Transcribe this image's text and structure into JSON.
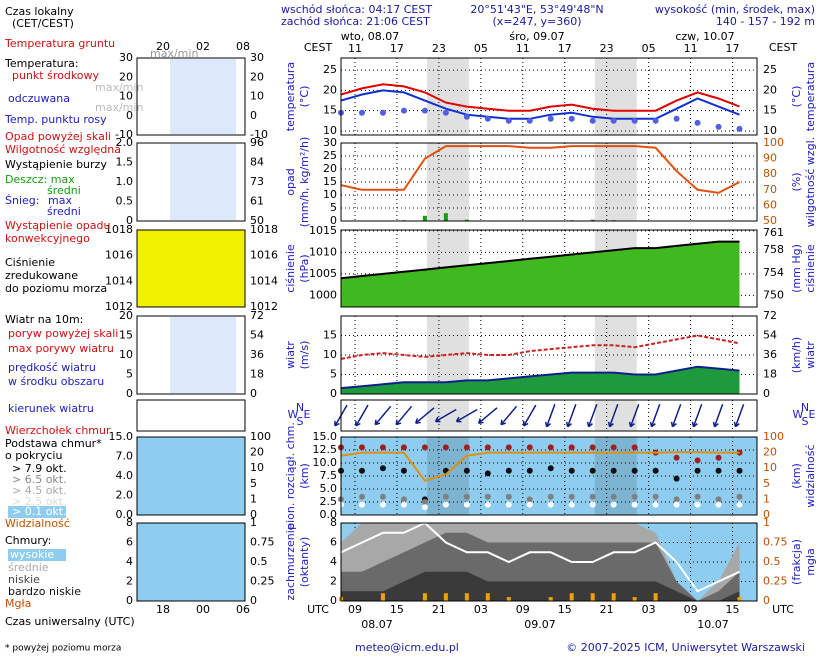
{
  "header": {
    "sunrise": "wschód słońca: 04:17 CEST",
    "sunset": "zachód słońca: 21:06 CEST",
    "coords": "20°51'43\"E, 53°49'48\"N",
    "grid": "(x=247, y=360)",
    "height_title": "wysokość (min, środek, max)",
    "height_values": "140 - 157 - 192 m"
  },
  "time_axis": {
    "xlim": [
      7,
      66.5
    ],
    "cest_label": "CEST",
    "utc_label": "UTC",
    "cest_ticks": [
      {
        "value": 9,
        "label": "11"
      },
      {
        "value": 15,
        "label": "17"
      },
      {
        "value": 21,
        "label": "23"
      },
      {
        "value": 27,
        "label": "05"
      },
      {
        "value": 33,
        "label": "11"
      },
      {
        "value": 39,
        "label": "17"
      },
      {
        "value": 45,
        "label": "23"
      },
      {
        "value": 51,
        "label": "05"
      },
      {
        "value": 57,
        "label": "11"
      },
      {
        "value": 63,
        "label": "17"
      }
    ],
    "utc_ticks": [
      {
        "value": 9,
        "label": "09"
      },
      {
        "value": 15,
        "label": "15"
      },
      {
        "value": 21,
        "label": "21"
      },
      {
        "value": 27,
        "label": "03"
      },
      {
        "value": 33,
        "label": "09"
      },
      {
        "value": 39,
        "label": "15"
      },
      {
        "value": 45,
        "label": "21"
      },
      {
        "value": 51,
        "label": "03"
      },
      {
        "value": 57,
        "label": "09"
      },
      {
        "value": 63,
        "label": "15"
      }
    ],
    "top_dates": [
      "wto, 08.07",
      "śro, 09.07",
      "czw, 10.07"
    ],
    "bottom_dates": [
      "08.07",
      "09.07",
      "10.07"
    ]
  },
  "chart_data": [
    {
      "type": "line",
      "ylabel": [
        "temperatura",
        "(°C)"
      ],
      "y2label": [
        "(°C)",
        "temperatura"
      ],
      "ylim": [
        9,
        28
      ],
      "yticks": [
        10,
        15,
        20,
        25
      ],
      "grid": true,
      "x": [
        7,
        10,
        13,
        16,
        19,
        22,
        25,
        28,
        31,
        34,
        37,
        40,
        43,
        46,
        49,
        52,
        55,
        58,
        61,
        64
      ],
      "series": [
        {
          "name": "punkt środkowy",
          "style": "line",
          "color": "#e00000",
          "values": [
            19,
            20.5,
            21.5,
            21,
            19.5,
            17,
            16,
            15.5,
            15,
            15,
            16,
            16.5,
            15.5,
            15,
            15,
            15,
            17.5,
            19.5,
            18,
            16
          ]
        },
        {
          "name": "odczuwana",
          "style": "line",
          "color": "#1030d0",
          "values": [
            17.5,
            19,
            20,
            19.5,
            17.5,
            15.5,
            14,
            13.5,
            13,
            13,
            14,
            14.5,
            13.5,
            13,
            13,
            13,
            15.5,
            18,
            16,
            14
          ]
        },
        {
          "name": "Temp. punktu rosy",
          "style": "dots",
          "color": "#5060e0",
          "values": [
            14.5,
            14.5,
            14.5,
            15,
            15,
            14.5,
            13.5,
            13,
            12.5,
            12.5,
            13,
            13,
            12.5,
            12.5,
            12.5,
            12.5,
            13,
            12,
            11,
            10.5
          ]
        }
      ]
    },
    {
      "type": "line",
      "ylabel": [
        "opad",
        "(mm/h, kg/m²/h)"
      ],
      "y2label": [
        "(%)",
        "wilgotność wzgl."
      ],
      "ylim": [
        0,
        30
      ],
      "yticks": [
        0,
        5,
        10,
        15,
        20,
        25,
        30
      ],
      "y2lim": [
        50,
        100
      ],
      "y2ticks": [
        50,
        60,
        70,
        80,
        90,
        100
      ],
      "grid": true,
      "x": [
        7,
        10,
        13,
        16,
        19,
        22,
        25,
        28,
        31,
        34,
        37,
        40,
        43,
        46,
        49,
        52,
        55,
        58,
        61,
        64
      ],
      "series": [
        {
          "name": "Wilgotność względna",
          "style": "line",
          "axis": "y2",
          "color": "#e05010",
          "values": [
            73,
            70,
            70,
            70,
            90,
            98,
            98,
            98,
            98,
            97,
            97,
            98,
            98,
            98,
            98,
            97,
            82,
            70,
            68,
            75
          ]
        },
        {
          "name": "Deszcz: max",
          "style": "bars",
          "color": "#10a010",
          "values": [
            0,
            0,
            0,
            0.3,
            2,
            3,
            0.5,
            0.2,
            0,
            0,
            0,
            0.3,
            0.5,
            0.3,
            0,
            0,
            0,
            0,
            0,
            0.2
          ]
        }
      ]
    },
    {
      "type": "line",
      "ylabel": [
        "ciśnienie",
        "(hPa)"
      ],
      "y2label": [
        "(mm Hg)",
        "ciśnienie"
      ],
      "ylim": [
        997.3,
        1015.2
      ],
      "yticks": [
        1000,
        1005,
        1010,
        1015
      ],
      "y2lim": [
        748,
        761.5
      ],
      "y2ticks": [
        750,
        754,
        758,
        761
      ],
      "grid": true,
      "x": [
        7,
        10,
        13,
        16,
        19,
        22,
        25,
        28,
        31,
        34,
        37,
        40,
        43,
        46,
        49,
        52,
        55,
        58,
        61,
        64
      ],
      "series": [
        {
          "name": "Ciśnienie",
          "style": "area",
          "color": "#40b820",
          "stroke": "#000000",
          "values": [
            1004,
            1004.5,
            1005,
            1005.5,
            1006,
            1006.5,
            1007,
            1007.5,
            1008,
            1008.5,
            1009,
            1009.5,
            1010,
            1010.5,
            1011,
            1011,
            1011.5,
            1012,
            1012.5,
            1012.5
          ]
        }
      ]
    },
    {
      "type": "line",
      "ylabel": [
        "wiatr",
        "(m/s)"
      ],
      "y2label": [
        "(km/h)",
        "wiatr"
      ],
      "ylim": [
        0,
        20
      ],
      "yticks": [
        0,
        5,
        10,
        15
      ],
      "y2lim": [
        0,
        72
      ],
      "y2ticks": [
        0,
        18,
        36,
        54,
        72
      ],
      "grid": true,
      "x": [
        7,
        10,
        13,
        16,
        19,
        22,
        25,
        28,
        31,
        34,
        37,
        40,
        43,
        46,
        49,
        52,
        55,
        58,
        61,
        64
      ],
      "series": [
        {
          "name": "max porywy wiatru",
          "style": "dashed",
          "color": "#d02020",
          "values": [
            9,
            10,
            10.5,
            10,
            9.5,
            10,
            10.5,
            10,
            10,
            11,
            11.5,
            12,
            12.5,
            12.5,
            12,
            13,
            14,
            15,
            14,
            13
          ]
        },
        {
          "name": "prędkość wiatru",
          "style": "area",
          "color": "#1e9a3c",
          "stroke": "#10208a",
          "values": [
            1.5,
            2,
            2.5,
            3,
            3,
            3,
            3.5,
            3.5,
            4,
            4.5,
            5,
            5.5,
            5.5,
            5.5,
            5,
            5,
            6,
            7,
            6.5,
            6
          ]
        }
      ]
    },
    {
      "type": "quiver",
      "compass": [
        "N",
        "W",
        "E",
        "S"
      ],
      "grid": true,
      "x": [
        7,
        10,
        13,
        16,
        19,
        22,
        25,
        28,
        31,
        34,
        37,
        40,
        43,
        46,
        49,
        52,
        55,
        58,
        61,
        64
      ],
      "series": [
        {
          "name": "kierunek wiatru",
          "style": "arrows",
          "color": "#10208a",
          "values": [
            30,
            30,
            40,
            40,
            50,
            60,
            60,
            50,
            40,
            30,
            20,
            20,
            20,
            20,
            20,
            20,
            20,
            20,
            20,
            20
          ]
        }
      ]
    },
    {
      "type": "line",
      "ylabel": [
        "pion. rozciągł. chm.",
        "(km)"
      ],
      "y2label": [
        "(km)",
        "widzialność"
      ],
      "ylim": [
        0,
        15
      ],
      "yticks": [
        {
          "value": 0,
          "label": "0.0"
        },
        {
          "value": 2.5,
          "label": "2.5"
        },
        {
          "value": 5,
          "label": "5.0"
        },
        {
          "value": 7.5,
          "label": "7.5"
        },
        {
          "value": 10,
          "label": "10.0"
        },
        {
          "value": 12.5,
          "label": "12.5"
        },
        {
          "value": 15,
          "label": "15.0"
        }
      ],
      "y2lim": [
        0,
        100
      ],
      "y2ticks": [
        0,
        1,
        5,
        10,
        20,
        100
      ],
      "y2scale": "ticks",
      "background": "#8ecdf0",
      "grid": true,
      "x": [
        7,
        10,
        13,
        16,
        19,
        22,
        25,
        28,
        31,
        34,
        37,
        40,
        43,
        46,
        49,
        52,
        55,
        58,
        61,
        64
      ],
      "series": [
        {
          "name": "Wierzchołek chmur",
          "style": "dots",
          "color": "#a02020",
          "values": [
            13,
            13,
            13,
            13,
            13,
            13,
            13,
            13,
            13,
            13,
            13,
            13,
            13,
            13,
            13,
            12,
            11,
            10.5,
            11,
            12
          ]
        },
        {
          "name": "> 7.9 okt.",
          "style": "dots",
          "color": "#101010",
          "values": [
            8.5,
            8.5,
            9,
            8.5,
            3,
            8.5,
            8.5,
            8,
            8.5,
            8.5,
            9,
            8.5,
            8.5,
            8.5,
            8.5,
            8.5,
            7,
            8.5,
            8.5,
            8.5
          ]
        },
        {
          "name": "> 4.5 okt.",
          "style": "dots",
          "color": "#808080",
          "values": [
            3,
            3.5,
            3.5,
            3,
            2.5,
            3.5,
            3.5,
            3.5,
            3.5,
            3,
            3.5,
            3.5,
            3.5,
            3.5,
            3.5,
            3.5,
            3,
            3.5,
            3,
            3.5
          ]
        },
        {
          "name": "> 0.1 okt.",
          "style": "dots",
          "color": "#ffffff",
          "values": [
            2,
            2,
            2,
            2,
            1.5,
            2,
            2,
            2,
            2,
            2,
            2,
            2,
            2,
            2,
            2,
            2,
            2,
            2,
            2,
            2
          ]
        },
        {
          "name": "Widzialność",
          "style": "line",
          "axis": "y2",
          "color": "#e09010",
          "values": [
            18,
            20,
            20,
            20,
            6,
            8,
            18,
            20,
            20,
            20,
            20,
            20,
            20,
            20,
            20,
            20,
            22,
            22,
            20,
            20
          ]
        }
      ]
    },
    {
      "type": "line",
      "ylabel": [
        "zachmurzenie",
        "(oktanty)"
      ],
      "y2label": [
        "(frakcja)",
        "mgła"
      ],
      "ylim": [
        0,
        8
      ],
      "yticks": [
        0,
        2,
        4,
        6,
        8
      ],
      "y2lim": [
        0,
        1
      ],
      "y2ticks": [
        0,
        0.25,
        0.5,
        0.75,
        1
      ],
      "background": "#8ecdf0",
      "grid": true,
      "x": [
        7,
        10,
        13,
        16,
        19,
        22,
        25,
        28,
        31,
        34,
        37,
        40,
        43,
        46,
        49,
        52,
        55,
        58,
        61,
        64
      ],
      "series": [
        {
          "name": "średnie",
          "style": "area",
          "color": "#a8a8a8",
          "values": [
            6,
            8,
            8,
            8,
            8,
            8,
            8,
            8,
            8,
            8,
            8,
            8,
            8,
            8,
            8,
            7,
            2,
            0,
            2,
            6
          ]
        },
        {
          "name": "niskie",
          "style": "area",
          "color": "#6a6a6a",
          "values": [
            3,
            3,
            4,
            5,
            6,
            7,
            7,
            6,
            6,
            6,
            6,
            6,
            6,
            6,
            6,
            6,
            2,
            0,
            1,
            3
          ]
        },
        {
          "name": "bardzo niskie",
          "style": "area",
          "color": "#3a3a3a",
          "values": [
            1,
            1,
            1,
            2,
            3,
            3,
            3,
            2,
            2,
            2,
            2,
            2,
            2,
            2,
            2,
            2,
            1,
            0,
            0,
            1
          ]
        },
        {
          "name": "wysokie",
          "style": "line",
          "color": "#ffffff",
          "values": [
            5,
            6,
            7,
            7,
            8,
            6,
            5,
            5,
            4,
            5,
            5,
            4,
            4,
            5,
            5,
            6,
            4,
            1,
            2,
            3
          ]
        },
        {
          "name": "Mgła",
          "style": "bars",
          "axis": "y2",
          "color": "#f0a000",
          "values": [
            0.05,
            0,
            0.1,
            0,
            0.1,
            0.1,
            0.1,
            0.1,
            0.05,
            0,
            0.05,
            0.1,
            0.1,
            0.1,
            0.05,
            0.1,
            0,
            0,
            0,
            0.05
          ]
        }
      ]
    }
  ],
  "legend": {
    "local_time": "Czas lokalny",
    "local_time_zone": "(CET/CEST)",
    "ground_temp": "Temperatura gruntu",
    "ground_minmax": "max/min",
    "temperature": "Temperatura:",
    "mid_minmax": "max/min",
    "feel_minmax": "max/min",
    "precip_over": "Opad powyżej skali",
    "storm": "Wystąpienie burzy",
    "rain_mean": "średni",
    "snow": "Śnieg:",
    "snow_max": "max",
    "snow_mean": "średni",
    "convective1": "Wystąpienie opadu",
    "convective2": "konwekcyjnego",
    "pressure2": "zredukowane",
    "pressure3": "do poziomu morza",
    "wind_title": "Wiatr na 10m:",
    "gust_over": "poryw powyżej skali",
    "wind_mid": "w środku obszaru",
    "cloud_base": "Podstawa chmur*",
    "cloud_cover": "o pokryciu",
    "okt65": "> 6.5 okt.",
    "okt25": "> 2.5 okt.",
    "clouds": "Chmury:",
    "utc_time": "Czas uniwersalny (UTC)",
    "mini_top_ticks": [
      "20",
      "02",
      "08"
    ],
    "mini_bottom_ticks": [
      "18",
      "00",
      "06"
    ],
    "mini_panels": [
      {
        "left": [
          "30",
          "20",
          "10",
          "0",
          "-10"
        ],
        "right": [
          "30",
          "20",
          "10",
          "0",
          "-10"
        ]
      },
      {
        "left": [
          "2.0",
          "1.5",
          "1.0",
          "0.5",
          "0"
        ],
        "right": [
          "96",
          "84",
          "73",
          "61",
          "50"
        ]
      },
      {
        "left": [
          "1018",
          "1016",
          "1014",
          "1012"
        ],
        "right": [
          "1018",
          "1016",
          "1014",
          "1012"
        ]
      },
      {
        "left": [
          "20",
          "15",
          "10",
          "5",
          "0"
        ],
        "right": [
          "72",
          "54",
          "36",
          "18",
          "0"
        ]
      },
      {
        "left": [
          "15.0",
          "7.0",
          "4.0",
          "2.0",
          "0.0"
        ],
        "right": [
          "100",
          "20",
          "10",
          "5",
          "1",
          "0"
        ]
      },
      {
        "left": [
          "8",
          "6",
          "4",
          "2",
          "0"
        ],
        "right": [
          "1",
          "0.75",
          "0.5",
          "0.25",
          "0"
        ]
      }
    ]
  },
  "footer": {
    "email": "meteo@icm.edu.pl",
    "copyright": "© 2007-2025 ICM, Uniwersytet Warszawski",
    "note": "* powyżej poziomu morza"
  }
}
